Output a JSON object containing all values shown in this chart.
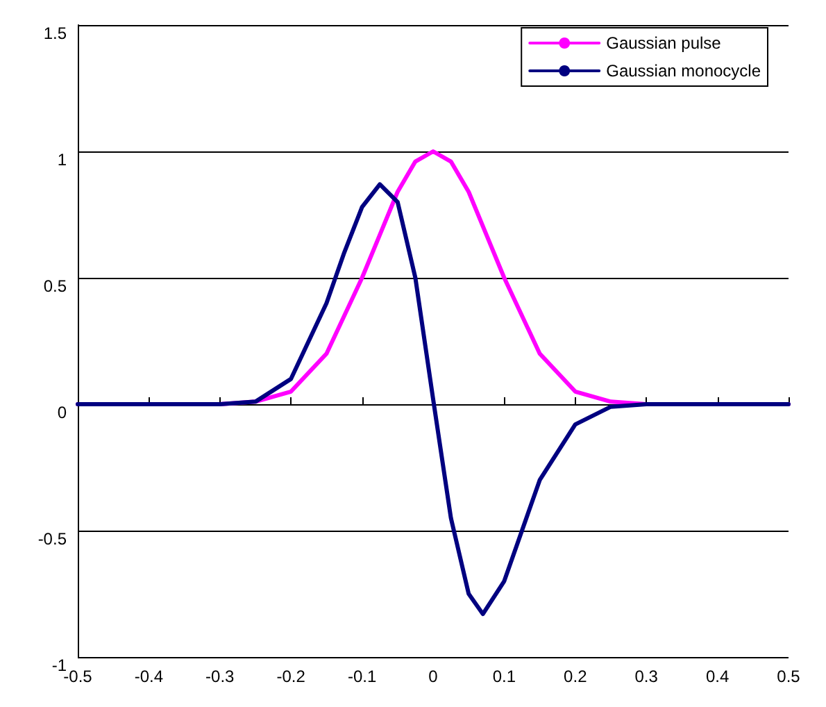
{
  "chart_data": {
    "type": "line",
    "xlim": [
      -0.5,
      0.5
    ],
    "ylim": [
      -1,
      1.5
    ],
    "xticks": [
      -0.5,
      -0.4,
      -0.3,
      -0.2,
      -0.1,
      0,
      0.1,
      0.2,
      0.3,
      0.4,
      0.5
    ],
    "yticks": [
      -1,
      -0.5,
      0,
      0.5,
      1,
      1.5
    ],
    "grid": "y",
    "legend": "top right",
    "marker": "none",
    "line_style": "solid",
    "series": [
      {
        "name": "Gaussian pulse",
        "color": "#ff00ff",
        "x": [
          -0.5,
          -0.3,
          -0.25,
          -0.2,
          -0.15,
          -0.1,
          -0.075,
          -0.05,
          -0.025,
          0,
          0.025,
          0.05,
          0.075,
          0.1,
          0.15,
          0.2,
          0.25,
          0.3,
          0.5
        ],
        "values": [
          0,
          0,
          0.01,
          0.05,
          0.2,
          0.5,
          0.67,
          0.84,
          0.96,
          1,
          0.96,
          0.84,
          0.67,
          0.5,
          0.2,
          0.05,
          0.01,
          0,
          0
        ]
      },
      {
        "name": "Gaussian monocycle",
        "color": "#000080",
        "x": [
          -0.5,
          -0.3,
          -0.25,
          -0.2,
          -0.15,
          -0.125,
          -0.1,
          -0.075,
          -0.05,
          -0.025,
          0,
          0.025,
          0.05,
          0.07,
          0.1,
          0.125,
          0.15,
          0.2,
          0.25,
          0.3,
          0.5
        ],
        "values": [
          0,
          0,
          0.01,
          0.1,
          0.4,
          0.6,
          0.78,
          0.87,
          0.8,
          0.5,
          0.02,
          -0.45,
          -0.75,
          -0.83,
          -0.7,
          -0.5,
          -0.3,
          -0.08,
          -0.01,
          0,
          0
        ]
      }
    ]
  }
}
